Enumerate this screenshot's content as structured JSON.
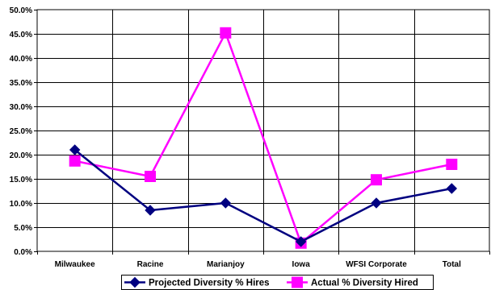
{
  "chart_data": {
    "type": "line",
    "categories": [
      "Milwaukee",
      "Racine",
      "Marianjoy",
      "Iowa",
      "WFSI Corporate",
      "Total"
    ],
    "series": [
      {
        "name": "Projected Diversity % Hires",
        "values": [
          21.0,
          8.5,
          10.0,
          2.0,
          10.0,
          13.0
        ],
        "color": "#000080",
        "marker": "diamond"
      },
      {
        "name": "Actual % Diversity Hired",
        "values": [
          18.7,
          15.5,
          45.2,
          1.7,
          14.8,
          18.0
        ],
        "color": "#ff00ff",
        "marker": "square"
      }
    ],
    "ylim": [
      0,
      50
    ],
    "yticks": [
      "0.0%",
      "5.0%",
      "10.0%",
      "15.0%",
      "20.0%",
      "25.0%",
      "30.0%",
      "35.0%",
      "40.0%",
      "45.0%",
      "50.0%"
    ],
    "grid": true,
    "legend_position": "bottom"
  }
}
